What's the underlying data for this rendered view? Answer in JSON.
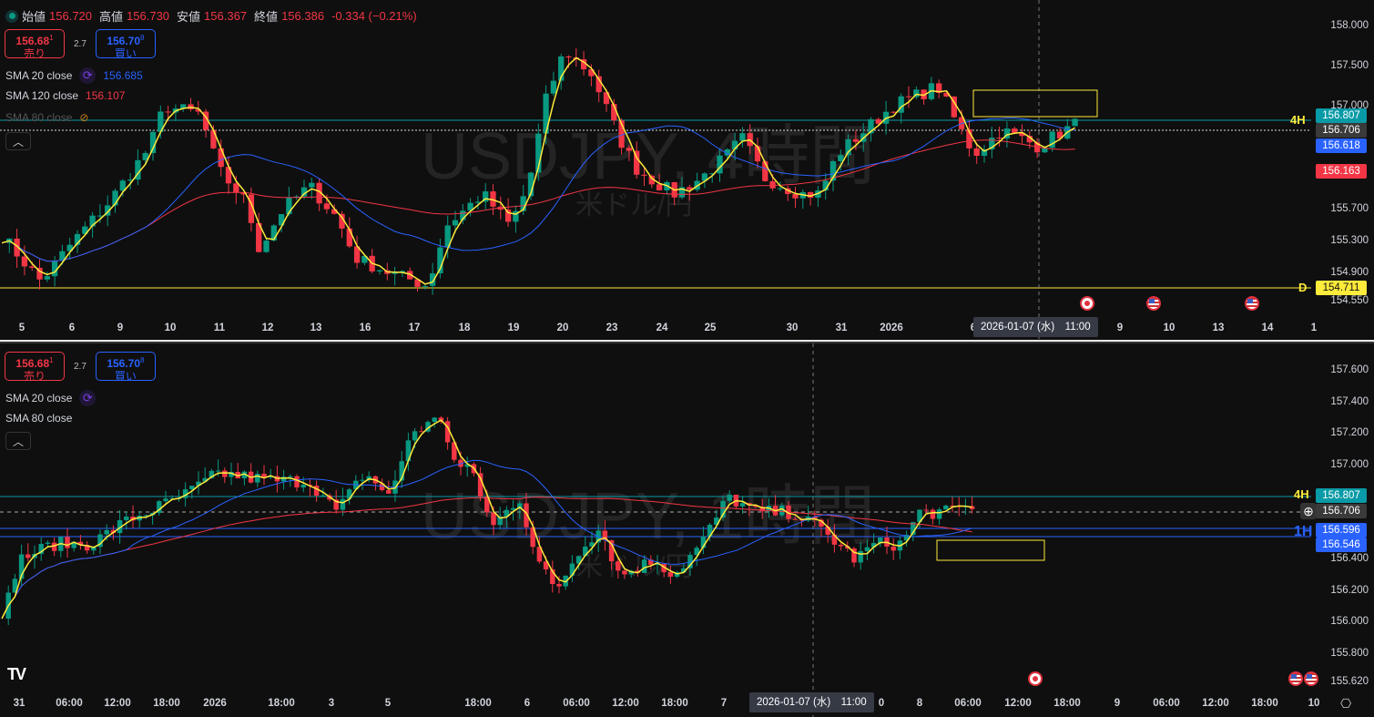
{
  "symbol": {
    "watermark_top": "USDJPY, 4時間",
    "watermark_bottom": "USDJPY, 1時間",
    "subtitle": "米ドル/円"
  },
  "ohlc": {
    "open_label": "始値",
    "open": "156.720",
    "high_label": "高値",
    "high": "156.730",
    "low_label": "安値",
    "low": "156.367",
    "close_label": "終値",
    "close": "156.386",
    "change": "-0.334 (−0.21%)"
  },
  "trade": {
    "sell_price": "156.68",
    "sell_sup": "1",
    "sell_label": "売り",
    "spread": "2.7",
    "buy_price": "156.70",
    "buy_sup": "8",
    "buy_label": "買い"
  },
  "top": {
    "indicators": [
      {
        "name": "SMA 20 close",
        "value": "156.685",
        "color": "#2962ff"
      },
      {
        "name": "SMA 120 close",
        "value": "156.107",
        "color": "#f23645"
      },
      {
        "name": "SMA 80 close",
        "hidden": true
      }
    ],
    "y_labels": [
      "158.000",
      "157.500",
      "157.000",
      "155.700",
      "155.300",
      "154.900",
      "154.550"
    ],
    "x_labels": [
      "5",
      "6",
      "9",
      "10",
      "11",
      "12",
      "13",
      "16",
      "17",
      "18",
      "19",
      "20",
      "23",
      "24",
      "25",
      "30",
      "31",
      "2026",
      "6",
      "9",
      "10",
      "13",
      "14",
      "1"
    ],
    "price_tags": [
      {
        "value": "156.807",
        "color": "#089aa6"
      },
      {
        "value": "156.706",
        "color": "#3a3a3a"
      },
      {
        "value": "156.618",
        "color": "#2962ff"
      },
      {
        "value": "156.163",
        "color": "#f23645"
      },
      {
        "value": "154.711",
        "color": "#ffeb3b"
      }
    ],
    "level_labels": {
      "h4": "4H",
      "d": "D"
    },
    "crosshair_time": "2026-01-07 (水)　11:00",
    "closes": [
      [
        155.4,
        0
      ],
      [
        154.8,
        45
      ],
      [
        155.3,
        80
      ],
      [
        155.8,
        120
      ],
      [
        156.5,
        165
      ],
      [
        157.0,
        180
      ],
      [
        156.9,
        220
      ],
      [
        156.2,
        240
      ],
      [
        155.8,
        270
      ],
      [
        155.2,
        285
      ],
      [
        155.7,
        310
      ],
      [
        156.0,
        340
      ],
      [
        155.6,
        370
      ],
      [
        155.1,
        390
      ],
      [
        154.9,
        430
      ],
      [
        154.75,
        470
      ],
      [
        155.5,
        490
      ],
      [
        155.9,
        530
      ],
      [
        155.5,
        560
      ],
      [
        156.0,
        580
      ],
      [
        157.1,
        600
      ],
      [
        157.7,
        620
      ],
      [
        157.4,
        650
      ],
      [
        156.6,
        680
      ],
      [
        156.2,
        700
      ],
      [
        155.9,
        740
      ],
      [
        156.1,
        770
      ],
      [
        156.4,
        800
      ],
      [
        156.6,
        815
      ],
      [
        156.1,
        840
      ],
      [
        155.9,
        880
      ],
      [
        155.9,
        900
      ],
      [
        156.4,
        920
      ],
      [
        156.7,
        950
      ],
      [
        157.0,
        980
      ],
      [
        157.1,
        1000
      ],
      [
        157.25,
        1030
      ],
      [
        156.8,
        1050
      ],
      [
        156.4,
        1070
      ],
      [
        156.7,
        1100
      ],
      [
        156.5,
        1140
      ],
      [
        156.8,
        1185
      ]
    ]
  },
  "bottom": {
    "indicators": [
      {
        "name": "SMA 20 close"
      },
      {
        "name": "SMA 80 close"
      }
    ],
    "y_labels": [
      "157.600",
      "157.400",
      "157.200",
      "157.000",
      "156.400",
      "156.200",
      "156.000",
      "155.800",
      "155.620"
    ],
    "x_labels": [
      "31",
      "06:00",
      "12:00",
      "18:00",
      "2026",
      "18:00",
      "3",
      "5",
      "18:00",
      "6",
      "06:00",
      "12:00",
      "18:00",
      "7",
      "0",
      "8",
      "06:00",
      "12:00",
      "18:00",
      "9",
      "06:00",
      "12:00",
      "18:00",
      "10"
    ],
    "price_tags": [
      {
        "value": "156.807",
        "color": "#089aa6"
      },
      {
        "value": "156.706",
        "color": "#3a3a3a"
      },
      {
        "value": "156.596",
        "color": "#2962ff"
      },
      {
        "value": "156.546",
        "color": "#2962ff"
      }
    ],
    "level_labels": {
      "h4": "4H",
      "h1": "1H"
    },
    "crosshair_time": "2026-01-07 (水)　11:00",
    "closes": [
      [
        155.95,
        0
      ],
      [
        156.4,
        20
      ],
      [
        156.5,
        60
      ],
      [
        156.5,
        100
      ],
      [
        156.65,
        140
      ],
      [
        156.8,
        200
      ],
      [
        156.95,
        240
      ],
      [
        156.9,
        300
      ],
      [
        156.9,
        340
      ],
      [
        156.7,
        370
      ],
      [
        156.95,
        400
      ],
      [
        156.8,
        430
      ],
      [
        157.2,
        450
      ],
      [
        157.3,
        485
      ],
      [
        157.0,
        500
      ],
      [
        156.95,
        520
      ],
      [
        156.6,
        540
      ],
      [
        156.8,
        570
      ],
      [
        156.4,
        590
      ],
      [
        156.2,
        610
      ],
      [
        156.5,
        640
      ],
      [
        156.6,
        660
      ],
      [
        156.3,
        680
      ],
      [
        156.4,
        720
      ],
      [
        156.3,
        740
      ],
      [
        156.5,
        770
      ],
      [
        156.8,
        800
      ],
      [
        156.7,
        830
      ],
      [
        156.7,
        870
      ],
      [
        156.6,
        900
      ],
      [
        156.5,
        920
      ],
      [
        156.4,
        940
      ],
      [
        156.5,
        960
      ],
      [
        156.5,
        990
      ],
      [
        156.7,
        1010
      ],
      [
        156.7,
        1040
      ],
      [
        156.75,
        1070
      ]
    ]
  },
  "colors": {
    "up": "#089981",
    "down": "#f23645",
    "sma_fast": "#2962ff",
    "sma_slow": "#f23645",
    "smooth": "#ffeb3b",
    "level_4h": "#089aa6",
    "level_d": "#ffeb3b"
  },
  "events": {
    "top": [
      "jp-flag-icon",
      "us-flag-icon",
      "us-flag-icon"
    ],
    "bottom": [
      "jp-flag-icon",
      "us-flag-icon",
      "us-flag-icon"
    ]
  }
}
